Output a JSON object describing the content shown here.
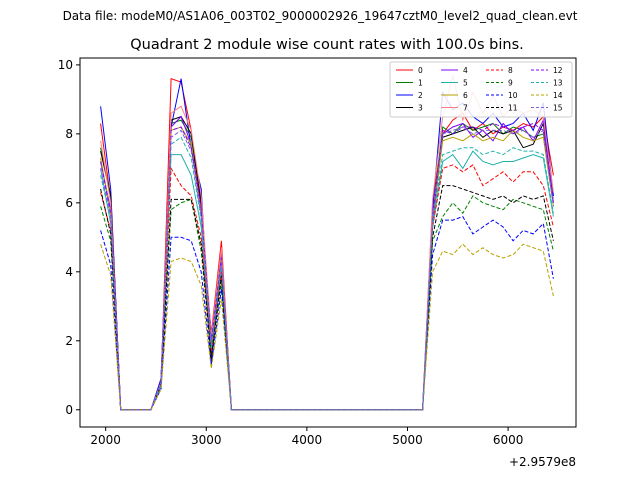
{
  "chart_data": {
    "type": "line",
    "suptitle": "Data file: modeM0/AS1A06_003T02_9000002926_19647cztM0_level2_quad_clean.evt",
    "title": "Quadrant 2 module wise count rates with 100.0s bins.",
    "xlabel": "",
    "ylabel": "",
    "x_offset_label": "+2.9579e8",
    "xlim": [
      1745,
      6675
    ],
    "ylim": [
      -0.5,
      10.2
    ],
    "x_ticks": [
      2000,
      3000,
      4000,
      5000,
      6000
    ],
    "y_ticks": [
      0,
      2,
      4,
      6,
      8,
      10
    ],
    "legend_position": "upper right",
    "x": [
      1950,
      2050,
      2150,
      2250,
      2350,
      2450,
      2550,
      2650,
      2750,
      2850,
      2950,
      3050,
      3150,
      3250,
      3350,
      3450,
      3550,
      3650,
      3750,
      3850,
      3950,
      4050,
      4150,
      4250,
      4350,
      4450,
      4550,
      4650,
      4750,
      4850,
      4950,
      5050,
      5150,
      5250,
      5350,
      5450,
      5550,
      5650,
      5750,
      5850,
      5950,
      6050,
      6150,
      6250,
      6350,
      6450
    ],
    "series": [
      {
        "name": "0",
        "color": "#ff0000",
        "dash": "solid",
        "values": [
          8.3,
          6.1,
          0,
          0,
          0,
          0,
          0.7,
          9.6,
          9.5,
          8.1,
          5.8,
          2.2,
          4.9,
          0,
          0,
          0,
          0,
          0,
          0,
          0,
          0,
          0,
          0,
          0,
          0,
          0,
          0,
          0,
          0,
          0,
          0,
          0,
          0,
          6,
          8,
          8.4,
          8.6,
          8.1,
          8.3,
          8,
          8.2,
          8.1,
          8.3,
          8.2,
          8.5,
          6.8
        ]
      },
      {
        "name": "1",
        "color": "#008000",
        "dash": "solid",
        "values": [
          7.6,
          6.2,
          0,
          0,
          0,
          0,
          0.8,
          8.3,
          8.4,
          7.9,
          6.1,
          1.8,
          4.5,
          0,
          0,
          0,
          0,
          0,
          0,
          0,
          0,
          0,
          0,
          0,
          0,
          0,
          0,
          0,
          0,
          0,
          0,
          0,
          0,
          5.6,
          8.2,
          8,
          8.3,
          8.1,
          8.2,
          8.3,
          8,
          8.2,
          8.1,
          7.9,
          8,
          6.2
        ]
      },
      {
        "name": "2",
        "color": "#0000ff",
        "dash": "solid",
        "values": [
          8.8,
          6.4,
          0,
          0,
          0,
          0,
          0.9,
          8.2,
          9.6,
          7.6,
          6.4,
          1.3,
          4.6,
          0,
          0,
          0,
          0,
          0,
          0,
          0,
          0,
          0,
          0,
          0,
          0,
          0,
          0,
          0,
          0,
          0,
          0,
          0,
          0,
          5.8,
          9.2,
          8.7,
          8.9,
          8.5,
          8.3,
          8.6,
          8.2,
          8.3,
          8.6,
          8.1,
          8.9,
          6.2
        ]
      },
      {
        "name": "3",
        "color": "#000000",
        "dash": "solid",
        "values": [
          7.5,
          6.2,
          0,
          0,
          0,
          0,
          0.8,
          8.4,
          8.5,
          8,
          6,
          2,
          4.6,
          0,
          0,
          0,
          0,
          0,
          0,
          0,
          0,
          0,
          0,
          0,
          0,
          0,
          0,
          0,
          0,
          0,
          0,
          0,
          0,
          5.4,
          7.9,
          8,
          8.1,
          8.2,
          7.9,
          8.1,
          8,
          8.1,
          7.6,
          7.7,
          8.3,
          6
        ]
      },
      {
        "name": "4",
        "color": "#8000ff",
        "dash": "solid",
        "values": [
          7.2,
          5.8,
          0,
          0,
          0,
          0,
          0.8,
          8.2,
          8.5,
          7.7,
          5.8,
          2,
          4.5,
          0,
          0,
          0,
          0,
          0,
          0,
          0,
          0,
          0,
          0,
          0,
          0,
          0,
          0,
          0,
          0,
          0,
          0,
          0,
          0,
          5.6,
          8,
          8.2,
          8.3,
          7.9,
          8.1,
          7.8,
          8.3,
          8,
          8.2,
          7.8,
          8.4,
          6
        ]
      },
      {
        "name": "5",
        "color": "#20b2aa",
        "dash": "solid",
        "values": [
          7,
          5.4,
          0,
          0,
          0,
          0,
          0.7,
          7.4,
          7.4,
          6.8,
          5.3,
          1.6,
          4.1,
          0,
          0,
          0,
          0,
          0,
          0,
          0,
          0,
          0,
          0,
          0,
          0,
          0,
          0,
          0,
          0,
          0,
          0,
          0,
          0,
          5.3,
          7.2,
          7.4,
          7,
          7.5,
          7.2,
          7.1,
          7.2,
          7.2,
          7.3,
          7.4,
          7.3,
          5.6
        ]
      },
      {
        "name": "6",
        "color": "#b8a000",
        "dash": "solid",
        "values": [
          7.3,
          5.7,
          0,
          0,
          0,
          0,
          0.8,
          8.1,
          8.2,
          7.7,
          5.7,
          2.1,
          4.4,
          0,
          0,
          0,
          0,
          0,
          0,
          0,
          0,
          0,
          0,
          0,
          0,
          0,
          0,
          0,
          0,
          0,
          0,
          0,
          0,
          5.5,
          7.8,
          7.9,
          7.8,
          8,
          7.8,
          7.9,
          7.8,
          8.1,
          7.9,
          7.8,
          7.9,
          5.9
        ]
      },
      {
        "name": "7",
        "color": "#ff8080",
        "dash": "solid",
        "values": [
          7.8,
          6,
          0,
          0,
          0,
          0,
          0.8,
          8.6,
          8.8,
          8.1,
          6.2,
          2.1,
          4.7,
          0,
          0,
          0,
          0,
          0,
          0,
          0,
          0,
          0,
          0,
          0,
          0,
          0,
          0,
          0,
          0,
          0,
          0,
          0,
          0,
          6.1,
          8.5,
          9.7,
          8.4,
          9.2,
          8.6,
          9.1,
          8.5,
          8.8,
          8.6,
          8.7,
          8.5,
          6.3
        ]
      },
      {
        "name": "8",
        "color": "#ff0000",
        "dash": "dashed",
        "values": [
          6.3,
          5.2,
          0,
          0,
          0,
          0,
          0.7,
          7,
          6.5,
          6.2,
          5,
          1.6,
          4,
          0,
          0,
          0,
          0,
          0,
          0,
          0,
          0,
          0,
          0,
          0,
          0,
          0,
          0,
          0,
          0,
          0,
          0,
          0,
          0,
          5.3,
          7,
          7.1,
          6.9,
          7.1,
          6.5,
          6.7,
          6.9,
          6.6,
          6.9,
          6.9,
          6.5,
          5.3
        ]
      },
      {
        "name": "9",
        "color": "#008000",
        "dash": "dashed",
        "values": [
          5.9,
          4.9,
          0,
          0,
          0,
          0,
          0.7,
          5.8,
          6,
          6.1,
          4.6,
          1.5,
          3.7,
          0,
          0,
          0,
          0,
          0,
          0,
          0,
          0,
          0,
          0,
          0,
          0,
          0,
          0,
          0,
          0,
          0,
          0,
          0,
          0,
          4.9,
          5.6,
          6,
          5.7,
          6.2,
          6,
          5.9,
          5.8,
          6.1,
          6,
          5.9,
          5.8,
          4.6
        ]
      },
      {
        "name": "10",
        "color": "#0000ff",
        "dash": "dashed",
        "values": [
          5.2,
          4.2,
          0,
          0,
          0,
          0,
          0.6,
          5,
          5,
          4.9,
          4,
          1.3,
          3.5,
          0,
          0,
          0,
          0,
          0,
          0,
          0,
          0,
          0,
          0,
          0,
          0,
          0,
          0,
          0,
          0,
          0,
          0,
          0,
          0,
          4.5,
          5.5,
          5.5,
          5.6,
          5.1,
          5.3,
          5.5,
          5.3,
          4.9,
          5.2,
          5.1,
          5.4,
          3.8
        ]
      },
      {
        "name": "11",
        "color": "#000000",
        "dash": "dashed",
        "values": [
          6.4,
          5.1,
          0,
          0,
          0,
          0,
          0.7,
          6.1,
          6.1,
          6.1,
          4.8,
          1.5,
          3.9,
          0,
          0,
          0,
          0,
          0,
          0,
          0,
          0,
          0,
          0,
          0,
          0,
          0,
          0,
          0,
          0,
          0,
          0,
          0,
          0,
          5,
          6.5,
          6.5,
          6.4,
          6.3,
          6.2,
          6.1,
          6.2,
          6,
          6.2,
          6.1,
          6.2,
          4.9
        ]
      },
      {
        "name": "12",
        "color": "#8000ff",
        "dash": "dashed",
        "values": [
          7.2,
          5.7,
          0,
          0,
          0,
          0,
          0.8,
          8.1,
          8.2,
          7.6,
          5.8,
          2,
          4.4,
          0,
          0,
          0,
          0,
          0,
          0,
          0,
          0,
          0,
          0,
          0,
          0,
          0,
          0,
          0,
          0,
          0,
          0,
          0,
          0,
          5.5,
          8.1,
          8,
          8.2,
          8.2,
          8.1,
          8.3,
          8.2,
          8.1,
          8.2,
          8.3,
          8.1,
          6
        ]
      },
      {
        "name": "13",
        "color": "#20b2aa",
        "dash": "dashed",
        "values": [
          6.8,
          5.5,
          0,
          0,
          0,
          0,
          0.7,
          7.7,
          7.9,
          7.3,
          5.5,
          1.8,
          4.2,
          0,
          0,
          0,
          0,
          0,
          0,
          0,
          0,
          0,
          0,
          0,
          0,
          0,
          0,
          0,
          0,
          0,
          0,
          0,
          0,
          5.4,
          7.4,
          7.5,
          7.6,
          7.6,
          7.4,
          7.5,
          7.4,
          7.6,
          7.5,
          7.5,
          7.4,
          5.7
        ]
      },
      {
        "name": "14",
        "color": "#b8a000",
        "dash": "dashed",
        "values": [
          4.8,
          3.9,
          0,
          0,
          0,
          0,
          0.6,
          4.3,
          4.4,
          4.3,
          3.6,
          1.2,
          3.2,
          0,
          0,
          0,
          0,
          0,
          0,
          0,
          0,
          0,
          0,
          0,
          0,
          0,
          0,
          0,
          0,
          0,
          0,
          0,
          0,
          4,
          4.6,
          4.5,
          4.8,
          4.5,
          4.7,
          4.5,
          4.4,
          4.5,
          4.8,
          4.7,
          4.6,
          3.3
        ]
      },
      {
        "name": "15",
        "color": "#8060e0",
        "dash": "dashed",
        "values": [
          7,
          5.6,
          0,
          0,
          0,
          0,
          0.8,
          7.9,
          8.1,
          7.5,
          5.6,
          1.9,
          4.3,
          0,
          0,
          0,
          0,
          0,
          0,
          0,
          0,
          0,
          0,
          0,
          0,
          0,
          0,
          0,
          0,
          0,
          0,
          0,
          0,
          5.6,
          8,
          8.1,
          8.2,
          8,
          8.1,
          8.1,
          8.1,
          8,
          8.1,
          7.9,
          8.1,
          5.9
        ]
      }
    ]
  }
}
